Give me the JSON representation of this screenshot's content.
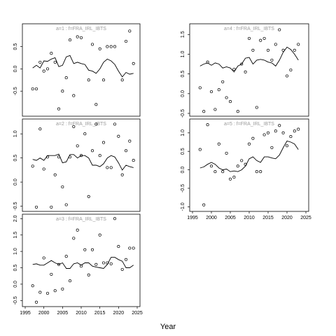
{
  "figure": {
    "xlabel": "Year"
  },
  "chart_data": [
    {
      "type": "scatter",
      "title": "a=1  :  f=FRA_IRL_IBTS",
      "xlim": [
        1995,
        2025
      ],
      "ylim": [
        -1.0,
        0.95
      ],
      "xticks": [],
      "yticks": [
        -0.5,
        0.0,
        0.5
      ],
      "points": [
        [
          1997,
          -0.45
        ],
        [
          1998,
          -0.45
        ],
        [
          1999,
          0.15
        ],
        [
          2000,
          -0.05
        ],
        [
          2001,
          0.0
        ],
        [
          2002,
          0.35
        ],
        [
          2003,
          0.15
        ],
        [
          2004,
          -0.9
        ],
        [
          2005,
          -0.5
        ],
        [
          2006,
          -0.2
        ],
        [
          2007,
          0.65
        ],
        [
          2008,
          -0.6
        ],
        [
          2009,
          0.72
        ],
        [
          2010,
          0.7
        ],
        [
          2012,
          -0.25
        ],
        [
          2013,
          0.55
        ],
        [
          2014,
          -0.8
        ],
        [
          2015,
          0.45
        ],
        [
          2016,
          -0.25
        ],
        [
          2017,
          0.5
        ],
        [
          2018,
          0.5
        ],
        [
          2019,
          0.5
        ],
        [
          2021,
          -0.25
        ],
        [
          2022,
          0.62
        ],
        [
          2023,
          0.85
        ],
        [
          2024,
          0.12
        ]
      ],
      "line": [
        [
          1997,
          0.02
        ],
        [
          1998,
          0.08
        ],
        [
          1999,
          0.02
        ],
        [
          2000,
          0.18
        ],
        [
          2001,
          0.17
        ],
        [
          2002,
          0.22
        ],
        [
          2003,
          0.25
        ],
        [
          2004,
          0.05
        ],
        [
          2005,
          0.08
        ],
        [
          2006,
          0.27
        ],
        [
          2007,
          0.3
        ],
        [
          2008,
          0.12
        ],
        [
          2009,
          0.15
        ],
        [
          2010,
          0.12
        ],
        [
          2011,
          0.1
        ],
        [
          2012,
          -0.03
        ],
        [
          2013,
          -0.05
        ],
        [
          2014,
          -0.1
        ],
        [
          2015,
          0.0
        ],
        [
          2016,
          0.15
        ],
        [
          2017,
          0.22
        ],
        [
          2018,
          0.18
        ],
        [
          2019,
          0.1
        ],
        [
          2020,
          -0.05
        ],
        [
          2021,
          -0.18
        ],
        [
          2022,
          -0.08
        ],
        [
          2023,
          -0.12
        ],
        [
          2024,
          -0.1
        ]
      ]
    },
    {
      "type": "scatter",
      "title": "a=2  :  f=FRA_IRL_IBTS",
      "xlim": [
        1995,
        2025
      ],
      "ylim": [
        -0.55,
        1.25
      ],
      "xticks": [],
      "yticks": [
        -0.5,
        0.0,
        0.5,
        1.0
      ],
      "points": [
        [
          1997,
          0.33
        ],
        [
          1998,
          -0.52
        ],
        [
          1999,
          1.1
        ],
        [
          2000,
          0.27
        ],
        [
          2001,
          0.52
        ],
        [
          2002,
          -0.52
        ],
        [
          2003,
          0.15
        ],
        [
          2004,
          0.52
        ],
        [
          2005,
          -0.1
        ],
        [
          2006,
          -0.47
        ],
        [
          2007,
          0.52
        ],
        [
          2008,
          1.15
        ],
        [
          2009,
          0.75
        ],
        [
          2010,
          0.55
        ],
        [
          2011,
          1.0
        ],
        [
          2012,
          -0.3
        ],
        [
          2013,
          0.65
        ],
        [
          2014,
          1.2
        ],
        [
          2015,
          0.55
        ],
        [
          2016,
          0.82
        ],
        [
          2017,
          0.3
        ],
        [
          2018,
          0.3
        ],
        [
          2019,
          1.2
        ],
        [
          2020,
          0.95
        ],
        [
          2021,
          0.15
        ],
        [
          2022,
          0.65
        ],
        [
          2023,
          0.85
        ],
        [
          2024,
          0.45
        ]
      ],
      "line": [
        [
          1997,
          0.47
        ],
        [
          1998,
          0.45
        ],
        [
          1999,
          0.5
        ],
        [
          2000,
          0.45
        ],
        [
          2001,
          0.55
        ],
        [
          2002,
          0.55
        ],
        [
          2003,
          0.55
        ],
        [
          2004,
          0.58
        ],
        [
          2005,
          0.4
        ],
        [
          2006,
          0.42
        ],
        [
          2007,
          0.57
        ],
        [
          2008,
          0.57
        ],
        [
          2009,
          0.5
        ],
        [
          2010,
          0.55
        ],
        [
          2011,
          0.55
        ],
        [
          2012,
          0.5
        ],
        [
          2013,
          0.35
        ],
        [
          2014,
          0.35
        ],
        [
          2015,
          0.32
        ],
        [
          2016,
          0.38
        ],
        [
          2017,
          0.5
        ],
        [
          2018,
          0.55
        ],
        [
          2019,
          0.52
        ],
        [
          2020,
          0.4
        ],
        [
          2021,
          0.25
        ],
        [
          2022,
          0.35
        ],
        [
          2023,
          0.32
        ],
        [
          2024,
          0.3
        ]
      ]
    },
    {
      "type": "scatter",
      "title": "a=3  :  f=FRA_IRL_IBTS",
      "xlim": [
        1995,
        2025
      ],
      "ylim": [
        -0.6,
        2.05
      ],
      "xticks": [
        1995,
        2000,
        2005,
        2010,
        2015,
        2020,
        2025
      ],
      "yticks": [
        -0.5,
        0.0,
        0.5,
        1.0,
        1.5,
        2.0
      ],
      "points": [
        [
          1997,
          -0.05
        ],
        [
          1998,
          -0.55
        ],
        [
          1999,
          -0.25
        ],
        [
          2000,
          0.8
        ],
        [
          2001,
          -0.28
        ],
        [
          2002,
          0.3
        ],
        [
          2003,
          -0.2
        ],
        [
          2004,
          0.6
        ],
        [
          2005,
          -0.15
        ],
        [
          2006,
          0.85
        ],
        [
          2007,
          0.1
        ],
        [
          2008,
          1.4
        ],
        [
          2009,
          1.65
        ],
        [
          2010,
          0.55
        ],
        [
          2011,
          1.05
        ],
        [
          2012,
          0.28
        ],
        [
          2013,
          1.05
        ],
        [
          2014,
          0.6
        ],
        [
          2015,
          1.5
        ],
        [
          2016,
          0.65
        ],
        [
          2017,
          0.65
        ],
        [
          2018,
          0.62
        ],
        [
          2019,
          2.0
        ],
        [
          2020,
          1.15
        ],
        [
          2021,
          0.45
        ],
        [
          2022,
          0.75
        ],
        [
          2023,
          1.1
        ],
        [
          2024,
          1.1
        ]
      ],
      "line": [
        [
          1997,
          0.6
        ],
        [
          1998,
          0.62
        ],
        [
          1999,
          0.58
        ],
        [
          2000,
          0.58
        ],
        [
          2001,
          0.65
        ],
        [
          2002,
          0.72
        ],
        [
          2003,
          0.65
        ],
        [
          2004,
          0.6
        ],
        [
          2005,
          0.65
        ],
        [
          2006,
          0.48
        ],
        [
          2007,
          0.48
        ],
        [
          2008,
          0.62
        ],
        [
          2009,
          0.65
        ],
        [
          2010,
          0.58
        ],
        [
          2011,
          0.65
        ],
        [
          2012,
          0.65
        ],
        [
          2013,
          0.55
        ],
        [
          2014,
          0.52
        ],
        [
          2015,
          0.5
        ],
        [
          2016,
          0.48
        ],
        [
          2017,
          0.6
        ],
        [
          2018,
          0.82
        ],
        [
          2019,
          0.82
        ],
        [
          2020,
          0.75
        ],
        [
          2021,
          0.7
        ],
        [
          2022,
          0.5
        ],
        [
          2023,
          0.5
        ],
        [
          2024,
          0.58
        ]
      ]
    },
    {
      "type": "scatter",
      "title": "a=4  :  f=FRA_IRL_IBTS",
      "xlim": [
        1995,
        2025
      ],
      "ylim": [
        -0.5,
        1.7
      ],
      "xticks": [],
      "yticks": [
        -0.5,
        0.0,
        0.5,
        1.0,
        1.5
      ],
      "points": [
        [
          1997,
          0.15
        ],
        [
          1998,
          -0.45
        ],
        [
          1999,
          0.8
        ],
        [
          2000,
          0.05
        ],
        [
          2001,
          -0.4
        ],
        [
          2002,
          0.1
        ],
        [
          2003,
          0.3
        ],
        [
          2004,
          -0.1
        ],
        [
          2005,
          -0.2
        ],
        [
          2006,
          0.62
        ],
        [
          2007,
          -0.45
        ],
        [
          2008,
          0.75
        ],
        [
          2009,
          0.55
        ],
        [
          2010,
          1.4
        ],
        [
          2011,
          1.1
        ],
        [
          2012,
          -0.35
        ],
        [
          2013,
          1.35
        ],
        [
          2014,
          1.4
        ],
        [
          2015,
          1.1
        ],
        [
          2016,
          0.85
        ],
        [
          2017,
          1.25
        ],
        [
          2018,
          1.62
        ],
        [
          2019,
          1.1
        ],
        [
          2020,
          0.45
        ],
        [
          2021,
          0.6
        ],
        [
          2022,
          1.1
        ],
        [
          2023,
          1.25
        ]
      ],
      "line": [
        [
          1997,
          0.7
        ],
        [
          1998,
          0.75
        ],
        [
          1999,
          0.78
        ],
        [
          2000,
          0.72
        ],
        [
          2001,
          0.78
        ],
        [
          2002,
          0.75
        ],
        [
          2003,
          0.65
        ],
        [
          2004,
          0.68
        ],
        [
          2005,
          0.65
        ],
        [
          2006,
          0.55
        ],
        [
          2007,
          0.7
        ],
        [
          2008,
          0.75
        ],
        [
          2009,
          0.9
        ],
        [
          2010,
          0.92
        ],
        [
          2011,
          0.75
        ],
        [
          2012,
          0.85
        ],
        [
          2013,
          0.87
        ],
        [
          2014,
          0.85
        ],
        [
          2015,
          0.8
        ],
        [
          2016,
          0.78
        ],
        [
          2017,
          0.7
        ],
        [
          2018,
          0.85
        ],
        [
          2019,
          1.05
        ],
        [
          2020,
          1.18
        ],
        [
          2021,
          1.12
        ],
        [
          2022,
          1.0
        ],
        [
          2023,
          0.85
        ]
      ]
    },
    {
      "type": "scatter",
      "title": "a=5  :  f=FRA_IRL_IBTS",
      "xlim": [
        1995,
        2025
      ],
      "ylim": [
        -1.05,
        1.3
      ],
      "xticks": [
        1995,
        2000,
        2005,
        2010,
        2015,
        2020,
        2025
      ],
      "yticks": [
        -1.0,
        -0.5,
        0.0,
        0.5,
        1.0
      ],
      "points": [
        [
          1997,
          0.55
        ],
        [
          1998,
          -0.95
        ],
        [
          1999,
          1.22
        ],
        [
          2000,
          0.1
        ],
        [
          2001,
          -0.05
        ],
        [
          2002,
          0.7
        ],
        [
          2003,
          -0.05
        ],
        [
          2004,
          0.45
        ],
        [
          2005,
          -0.25
        ],
        [
          2006,
          -0.2
        ],
        [
          2007,
          0.1
        ],
        [
          2008,
          0.25
        ],
        [
          2009,
          0.15
        ],
        [
          2010,
          0.7
        ],
        [
          2011,
          0.85
        ],
        [
          2012,
          -0.05
        ],
        [
          2013,
          -0.05
        ],
        [
          2014,
          0.95
        ],
        [
          2015,
          1.0
        ],
        [
          2016,
          0.6
        ],
        [
          2017,
          1.05
        ],
        [
          2018,
          1.2
        ],
        [
          2019,
          1.0
        ],
        [
          2020,
          0.65
        ],
        [
          2021,
          0.9
        ],
        [
          2022,
          1.05
        ],
        [
          2023,
          1.1
        ]
      ],
      "line": [
        [
          1997,
          0.05
        ],
        [
          1998,
          0.08
        ],
        [
          1999,
          0.15
        ],
        [
          2000,
          0.2
        ],
        [
          2001,
          0.15
        ],
        [
          2002,
          0.05
        ],
        [
          2003,
          0.0
        ],
        [
          2004,
          0.02
        ],
        [
          2005,
          -0.05
        ],
        [
          2006,
          -0.03
        ],
        [
          2007,
          -0.05
        ],
        [
          2008,
          0.0
        ],
        [
          2009,
          0.1
        ],
        [
          2010,
          0.3
        ],
        [
          2011,
          0.35
        ],
        [
          2012,
          0.25
        ],
        [
          2013,
          0.2
        ],
        [
          2014,
          0.35
        ],
        [
          2015,
          0.35
        ],
        [
          2016,
          0.32
        ],
        [
          2017,
          0.3
        ],
        [
          2018,
          0.4
        ],
        [
          2019,
          0.6
        ],
        [
          2020,
          0.78
        ],
        [
          2021,
          0.75
        ],
        [
          2022,
          0.7
        ],
        [
          2023,
          0.55
        ]
      ]
    }
  ]
}
